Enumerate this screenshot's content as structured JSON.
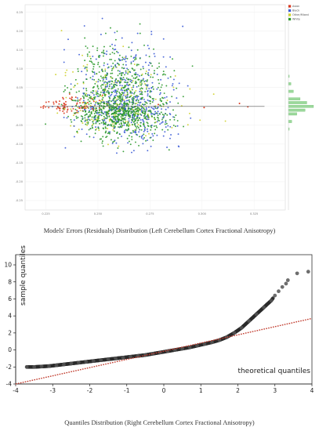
{
  "captions": {
    "top": "Models' Errors (Residuals) Distribution (Left Cerebellum Cortex Fractional Anisotropy)",
    "bottom": "Quantiles Distribution (Right Cerebellum Cortex Fractional Anisotropy)"
  },
  "chart_data": [
    {
      "type": "scatter",
      "xlim": [
        0.215,
        0.34
      ],
      "ylim": [
        -0.275,
        0.27
      ],
      "x_ticks": [
        0.225,
        0.25,
        0.275,
        0.3,
        0.325
      ],
      "y_ticks": [
        0.25,
        0.2,
        0.15,
        0.1,
        0.05,
        0.0,
        -0.05,
        -0.1,
        -0.15,
        -0.2,
        -0.25
      ],
      "x_tick_labels": [
        "0.225",
        "0.250",
        "0.275",
        "0.300",
        "0.325"
      ],
      "y_tick_labels": [
        "0.25",
        "0.20",
        "0.15",
        "0.10",
        "0.05",
        "0.00",
        "-0.05",
        "-0.10",
        "-0.15",
        "-0.20",
        "-0.25"
      ],
      "legend": [
        "Asian",
        "Black",
        "Other/Mixed",
        "White"
      ],
      "legend_position": "top-right",
      "colors": {
        "Asian": "#d9381e",
        "Black": "#3b5bd6",
        "Other/Mixed": "#cfd12a",
        "White": "#2e9a2e",
        "fit_line": "#555555",
        "hist": "#9bd89b"
      },
      "fit_line": {
        "x": [
          0.225,
          0.33
        ],
        "y": [
          0.0,
          0.0
        ]
      },
      "series": [
        {
          "name": "White",
          "points": "dense cloud",
          "x_center": 0.262,
          "x_spread": 0.011,
          "y_spread": 0.05
        },
        {
          "name": "Black",
          "points": "dense cloud",
          "x_center": 0.262,
          "x_spread": 0.012,
          "y_spread": 0.055
        },
        {
          "name": "Asian",
          "points": "spread along the left",
          "x_center": 0.238,
          "x_spread": 0.009,
          "y_spread": 0.012
        },
        {
          "name": "Other/Mixed",
          "points": "sparse cloud",
          "x_center": 0.258,
          "x_spread": 0.013,
          "y_spread": 0.04
        }
      ],
      "marginal_histogram": {
        "orientation": "horizontal",
        "bins_y": [
          0.08,
          0.06,
          0.04,
          0.02,
          0.01,
          0.0,
          -0.01,
          -0.02,
          -0.04,
          -0.06
        ],
        "counts": [
          1,
          3,
          6,
          14,
          22,
          30,
          20,
          10,
          4,
          1
        ]
      }
    },
    {
      "type": "scatter",
      "subtype": "qq-plot",
      "xlabel": "theoretical quantiles",
      "ylabel": "sample quantiles",
      "xlim": [
        -4,
        4
      ],
      "ylim": [
        -4,
        10
      ],
      "x_ticks": [
        -4,
        -3,
        -2,
        -1,
        0,
        1,
        2,
        3,
        4
      ],
      "y_ticks": [
        -4,
        -2,
        0,
        2,
        4,
        6,
        8,
        10
      ],
      "reference_line": {
        "x": [
          -4,
          4
        ],
        "y": [
          -4.0,
          3.7
        ],
        "style": "dotted",
        "color": "#c0392b"
      },
      "x": [
        -3.7,
        -3.5,
        -3.3,
        -3.1,
        -2.9,
        -2.7,
        -2.5,
        -2.3,
        -2.1,
        -1.9,
        -1.7,
        -1.5,
        -1.3,
        -1.1,
        -0.9,
        -0.7,
        -0.5,
        -0.3,
        -0.1,
        0.1,
        0.3,
        0.5,
        0.7,
        0.9,
        1.1,
        1.3,
        1.5,
        1.7,
        1.9,
        2.1,
        2.3,
        2.5,
        2.7,
        2.9,
        3.0,
        3.1,
        3.2,
        3.3,
        3.35,
        3.6,
        3.9
      ],
      "y": [
        -2.0,
        -2.0,
        -1.95,
        -1.9,
        -1.8,
        -1.7,
        -1.6,
        -1.5,
        -1.4,
        -1.3,
        -1.2,
        -1.1,
        -1.0,
        -0.9,
        -0.8,
        -0.7,
        -0.6,
        -0.45,
        -0.3,
        -0.15,
        0.0,
        0.15,
        0.3,
        0.5,
        0.7,
        0.9,
        1.15,
        1.5,
        2.0,
        2.6,
        3.4,
        4.2,
        5.0,
        5.8,
        6.4,
        6.9,
        7.4,
        7.8,
        8.2,
        9.0,
        9.2
      ],
      "color": "#2b2b2b"
    }
  ]
}
